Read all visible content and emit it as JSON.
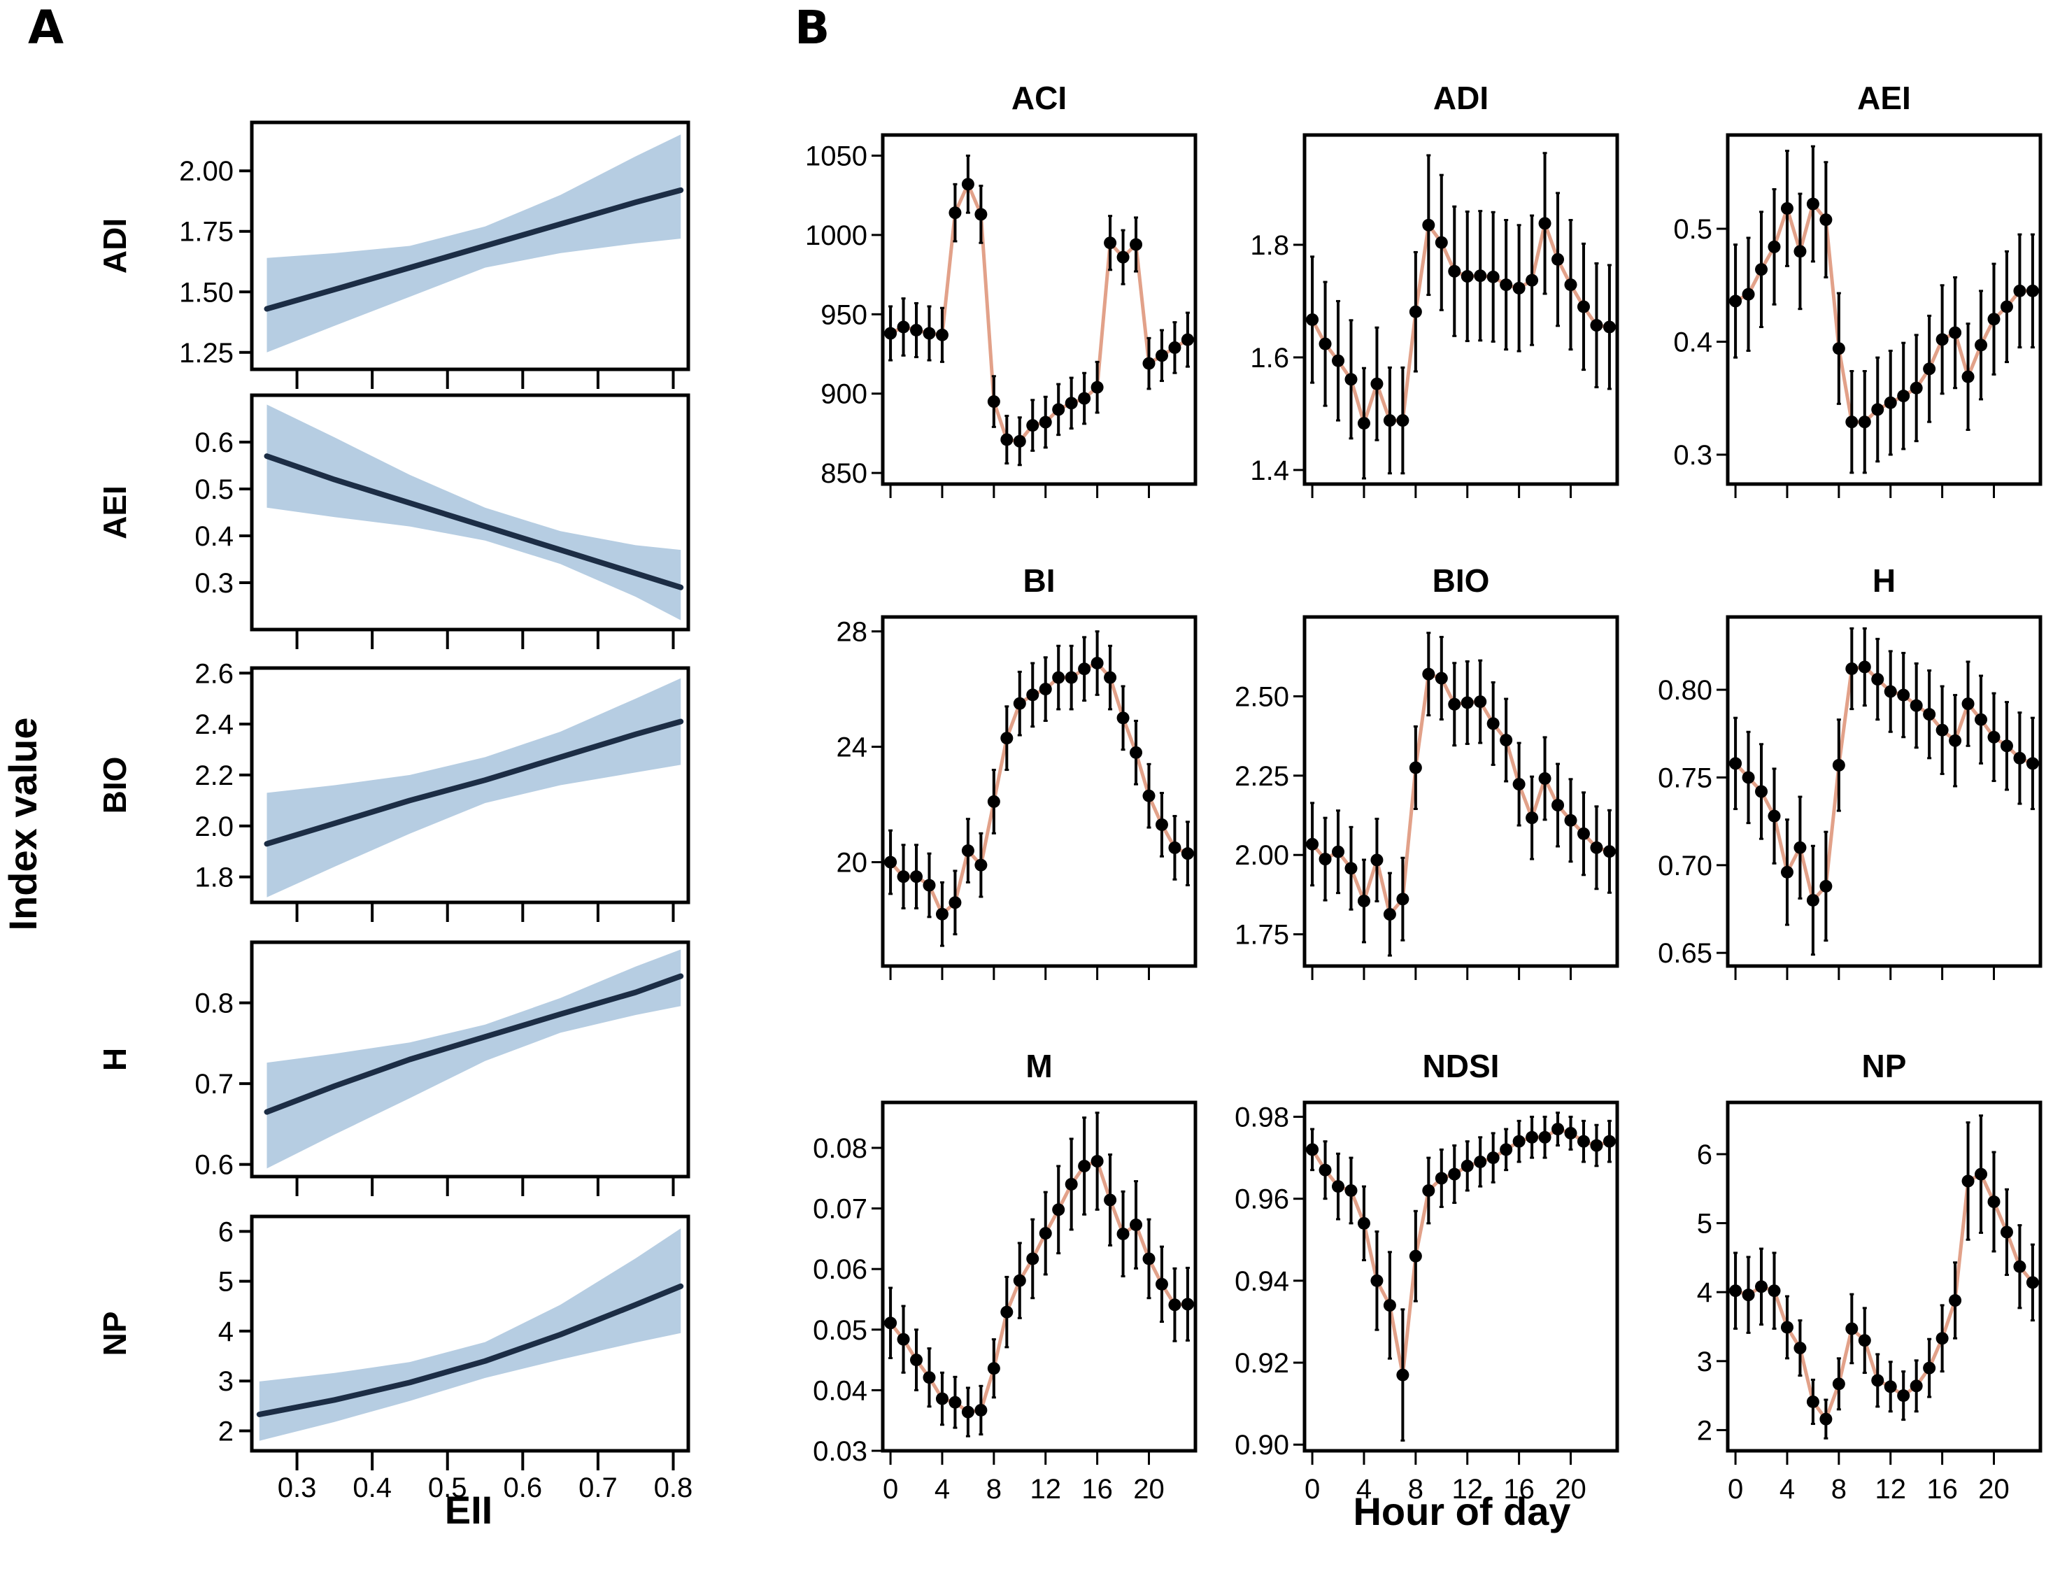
{
  "figure": {
    "panel_a_letter": "A",
    "panel_b_letter": "B",
    "panel_a_ylabel": "Index value",
    "panel_a_xlabel": "EII",
    "panel_b_xlabel": "Hour of day",
    "colors": {
      "ci_band": "#b6cde2",
      "fit_line": "#1c2d45",
      "hourly_line": "#e2a189",
      "points": "#000000",
      "frame": "#000000"
    }
  },
  "chart_data": [
    {
      "panel": "A",
      "type": "line",
      "title": "Index value vs EII",
      "xlabel": "EII",
      "ylabel": "Index value",
      "xlim": [
        0.24,
        0.82
      ],
      "xticks": [
        0.3,
        0.4,
        0.5,
        0.6,
        0.7,
        0.8
      ],
      "xtick_labels": [
        "0.3",
        "0.4",
        "0.5",
        "0.6",
        "0.7",
        "0.8"
      ],
      "grid": false,
      "subplots": [
        {
          "name": "ADI",
          "ylim": [
            1.18,
            2.2
          ],
          "yticks": [
            1.25,
            1.5,
            1.75,
            2.0
          ],
          "ytick_labels": [
            "1.25",
            "1.50",
            "1.75",
            "2.00"
          ],
          "x": [
            0.26,
            0.35,
            0.45,
            0.55,
            0.65,
            0.75,
            0.81
          ],
          "fit": [
            1.43,
            1.51,
            1.6,
            1.69,
            1.78,
            1.87,
            1.92
          ],
          "lower": [
            1.25,
            1.36,
            1.48,
            1.6,
            1.66,
            1.7,
            1.72
          ],
          "upper": [
            1.64,
            1.66,
            1.69,
            1.77,
            1.9,
            2.06,
            2.15
          ]
        },
        {
          "name": "AEI",
          "ylim": [
            0.2,
            0.7
          ],
          "yticks": [
            0.3,
            0.4,
            0.5,
            0.6
          ],
          "ytick_labels": [
            "0.3",
            "0.4",
            "0.5",
            "0.6"
          ],
          "x": [
            0.26,
            0.35,
            0.45,
            0.55,
            0.65,
            0.75,
            0.81
          ],
          "fit": [
            0.57,
            0.52,
            0.47,
            0.42,
            0.37,
            0.32,
            0.29
          ],
          "lower": [
            0.46,
            0.44,
            0.42,
            0.39,
            0.34,
            0.27,
            0.22
          ],
          "upper": [
            0.68,
            0.61,
            0.53,
            0.46,
            0.41,
            0.38,
            0.37
          ]
        },
        {
          "name": "BIO",
          "ylim": [
            1.7,
            2.62
          ],
          "yticks": [
            1.8,
            2.0,
            2.2,
            2.4,
            2.6
          ],
          "ytick_labels": [
            "1.8",
            "2.0",
            "2.2",
            "2.4",
            "2.6"
          ],
          "x": [
            0.26,
            0.35,
            0.45,
            0.55,
            0.65,
            0.75,
            0.81
          ],
          "fit": [
            1.93,
            2.01,
            2.1,
            2.18,
            2.27,
            2.36,
            2.41
          ],
          "lower": [
            1.72,
            1.84,
            1.97,
            2.09,
            2.16,
            2.21,
            2.24
          ],
          "upper": [
            2.13,
            2.16,
            2.2,
            2.27,
            2.37,
            2.5,
            2.58
          ]
        },
        {
          "name": "H",
          "ylim": [
            0.585,
            0.875
          ],
          "yticks": [
            0.6,
            0.7,
            0.8
          ],
          "ytick_labels": [
            "0.6",
            "0.7",
            "0.8"
          ],
          "x": [
            0.26,
            0.35,
            0.45,
            0.55,
            0.65,
            0.75,
            0.81
          ],
          "fit": [
            0.665,
            0.697,
            0.73,
            0.758,
            0.786,
            0.813,
            0.833
          ],
          "lower": [
            0.595,
            0.637,
            0.682,
            0.728,
            0.763,
            0.785,
            0.796
          ],
          "upper": [
            0.726,
            0.737,
            0.751,
            0.773,
            0.806,
            0.845,
            0.866
          ]
        },
        {
          "name": "NP",
          "ylim": [
            1.6,
            6.3
          ],
          "yticks": [
            2,
            3,
            4,
            5,
            6
          ],
          "ytick_labels": [
            "2",
            "3",
            "4",
            "5",
            "6"
          ],
          "x": [
            0.25,
            0.35,
            0.45,
            0.55,
            0.65,
            0.75,
            0.81
          ],
          "fit": [
            2.33,
            2.62,
            2.97,
            3.4,
            3.93,
            4.53,
            4.9
          ],
          "lower": [
            1.8,
            2.18,
            2.6,
            3.06,
            3.43,
            3.77,
            3.96
          ],
          "upper": [
            2.99,
            3.16,
            3.38,
            3.78,
            4.53,
            5.46,
            6.06
          ]
        }
      ]
    },
    {
      "panel": "B",
      "type": "line",
      "title": "Index value by hour of day",
      "xlabel": "Hour of day",
      "x": [
        0,
        1,
        2,
        3,
        4,
        5,
        6,
        7,
        8,
        9,
        10,
        11,
        12,
        13,
        14,
        15,
        16,
        17,
        18,
        19,
        20,
        21,
        22,
        23
      ],
      "xlim": [
        -0.6,
        23.6
      ],
      "xticks": [
        0,
        4,
        8,
        12,
        16,
        20
      ],
      "xtick_labels": [
        "0",
        "4",
        "8",
        "12",
        "16",
        "20"
      ],
      "grid": false,
      "subplots": [
        {
          "name": "ACI",
          "ylim": [
            843,
            1063
          ],
          "yticks": [
            850,
            900,
            950,
            1000,
            1050
          ],
          "ytick_labels": [
            "850",
            "900",
            "950",
            "1000",
            "1050"
          ],
          "values": [
            938,
            942,
            940,
            938,
            937,
            1014,
            1032,
            1013,
            895,
            871,
            870,
            880,
            882,
            890,
            894,
            897,
            904,
            995,
            986,
            994,
            919,
            924,
            929,
            934
          ],
          "err": [
            17,
            18,
            17,
            17,
            17,
            18,
            18,
            18,
            16,
            15,
            15,
            16,
            16,
            16,
            16,
            16,
            16,
            17,
            17,
            17,
            16,
            16,
            16,
            17
          ]
        },
        {
          "name": "ADI",
          "ylim": [
            1.375,
            1.995
          ],
          "yticks": [
            1.4,
            1.6,
            1.8
          ],
          "ytick_labels": [
            "1.4",
            "1.6",
            "1.8"
          ],
          "values": [
            1.667,
            1.624,
            1.594,
            1.561,
            1.483,
            1.553,
            1.488,
            1.488,
            1.681,
            1.835,
            1.804,
            1.753,
            1.744,
            1.745,
            1.743,
            1.729,
            1.723,
            1.737,
            1.838,
            1.774,
            1.729,
            1.69,
            1.657,
            1.654
          ],
          "err": [
            0.112,
            0.11,
            0.106,
            0.105,
            0.098,
            0.1,
            0.094,
            0.094,
            0.106,
            0.124,
            0.12,
            0.115,
            0.115,
            0.115,
            0.115,
            0.115,
            0.112,
            0.115,
            0.125,
            0.118,
            0.115,
            0.112,
            0.11,
            0.11
          ]
        },
        {
          "name": "AEI",
          "ylim": [
            0.274,
            0.583
          ],
          "yticks": [
            0.3,
            0.4,
            0.5
          ],
          "ytick_labels": [
            "0.3",
            "0.4",
            "0.5"
          ],
          "values": [
            0.436,
            0.442,
            0.464,
            0.484,
            0.518,
            0.48,
            0.522,
            0.508,
            0.394,
            0.329,
            0.329,
            0.34,
            0.346,
            0.352,
            0.359,
            0.376,
            0.402,
            0.408,
            0.369,
            0.397,
            0.42,
            0.431,
            0.445,
            0.445
          ],
          "err": [
            0.05,
            0.05,
            0.051,
            0.051,
            0.051,
            0.051,
            0.051,
            0.051,
            0.049,
            0.045,
            0.045,
            0.046,
            0.046,
            0.047,
            0.047,
            0.047,
            0.048,
            0.049,
            0.047,
            0.048,
            0.049,
            0.049,
            0.05,
            0.05
          ]
        },
        {
          "name": "BI",
          "ylim": [
            16.4,
            28.5
          ],
          "yticks": [
            20,
            24,
            28
          ],
          "ytick_labels": [
            "20",
            "24",
            "28"
          ],
          "values": [
            20.0,
            19.5,
            19.5,
            19.2,
            18.2,
            18.6,
            20.4,
            19.9,
            22.1,
            24.3,
            25.5,
            25.8,
            26.0,
            26.4,
            26.4,
            26.7,
            26.9,
            26.4,
            25.0,
            23.8,
            22.3,
            21.3,
            20.5,
            20.3
          ],
          "err": [
            1.1,
            1.1,
            1.1,
            1.1,
            1.1,
            1.1,
            1.1,
            1.1,
            1.1,
            1.1,
            1.1,
            1.1,
            1.1,
            1.1,
            1.1,
            1.1,
            1.1,
            1.1,
            1.1,
            1.1,
            1.1,
            1.1,
            1.1,
            1.1
          ]
        },
        {
          "name": "BIO",
          "ylim": [
            1.65,
            2.75
          ],
          "yticks": [
            1.75,
            2.0,
            2.25,
            2.5
          ],
          "ytick_labels": [
            "1.75",
            "2.00",
            "2.25",
            "2.50"
          ],
          "values": [
            2.034,
            1.987,
            2.01,
            1.958,
            1.855,
            1.984,
            1.813,
            1.861,
            2.275,
            2.57,
            2.557,
            2.475,
            2.48,
            2.483,
            2.414,
            2.362,
            2.223,
            2.117,
            2.241,
            2.157,
            2.109,
            2.067,
            2.023,
            2.011
          ],
          "err": [
            0.13,
            0.13,
            0.13,
            0.13,
            0.13,
            0.13,
            0.13,
            0.13,
            0.13,
            0.13,
            0.13,
            0.13,
            0.13,
            0.13,
            0.13,
            0.13,
            0.13,
            0.13,
            0.13,
            0.13,
            0.13,
            0.13,
            0.13,
            0.13
          ]
        },
        {
          "name": "H",
          "ylim": [
            0.6425,
            0.8415
          ],
          "yticks": [
            0.65,
            0.7,
            0.75,
            0.8
          ],
          "ytick_labels": [
            "0.65",
            "0.70",
            "0.75",
            "0.80"
          ],
          "values": [
            0.758,
            0.75,
            0.742,
            0.728,
            0.696,
            0.71,
            0.68,
            0.688,
            0.757,
            0.812,
            0.813,
            0.806,
            0.799,
            0.797,
            0.791,
            0.786,
            0.777,
            0.771,
            0.792,
            0.783,
            0.773,
            0.768,
            0.761,
            0.758
          ],
          "err": [
            0.026,
            0.026,
            0.027,
            0.027,
            0.03,
            0.029,
            0.031,
            0.031,
            0.026,
            0.023,
            0.022,
            0.023,
            0.023,
            0.024,
            0.024,
            0.025,
            0.025,
            0.026,
            0.024,
            0.025,
            0.025,
            0.025,
            0.026,
            0.026
          ]
        },
        {
          "name": "M",
          "ylim": [
            0.03,
            0.0875
          ],
          "yticks": [
            0.03,
            0.04,
            0.05,
            0.06,
            0.07,
            0.08
          ],
          "ytick_labels": [
            "0.03",
            "0.04",
            "0.05",
            "0.06",
            "0.07",
            "0.08"
          ],
          "values": [
            0.0511,
            0.0484,
            0.045,
            0.0421,
            0.0386,
            0.038,
            0.0364,
            0.0367,
            0.0436,
            0.0529,
            0.0581,
            0.0617,
            0.0659,
            0.0698,
            0.074,
            0.077,
            0.0778,
            0.0714,
            0.0658,
            0.0673,
            0.0617,
            0.0575,
            0.0541,
            0.0542
          ],
          "err": [
            0.0058,
            0.0055,
            0.005,
            0.0048,
            0.0043,
            0.0042,
            0.004,
            0.004,
            0.0048,
            0.0058,
            0.0062,
            0.0065,
            0.0068,
            0.0072,
            0.0075,
            0.008,
            0.008,
            0.0075,
            0.007,
            0.0072,
            0.0065,
            0.0062,
            0.006,
            0.006
          ]
        },
        {
          "name": "NDSI",
          "ylim": [
            0.8985,
            0.9835
          ],
          "yticks": [
            0.9,
            0.92,
            0.94,
            0.96,
            0.98
          ],
          "ytick_labels": [
            "0.90",
            "0.92",
            "0.94",
            "0.96",
            "0.98"
          ],
          "values": [
            0.972,
            0.967,
            0.963,
            0.962,
            0.954,
            0.94,
            0.934,
            0.917,
            0.946,
            0.962,
            0.965,
            0.966,
            0.968,
            0.969,
            0.97,
            0.972,
            0.974,
            0.975,
            0.975,
            0.977,
            0.976,
            0.974,
            0.973,
            0.974
          ],
          "err": [
            0.005,
            0.007,
            0.008,
            0.008,
            0.009,
            0.012,
            0.013,
            0.016,
            0.011,
            0.008,
            0.007,
            0.007,
            0.006,
            0.006,
            0.006,
            0.005,
            0.005,
            0.005,
            0.005,
            0.004,
            0.004,
            0.005,
            0.005,
            0.005
          ]
        },
        {
          "name": "NP",
          "ylim": [
            1.7,
            6.75
          ],
          "yticks": [
            2,
            3,
            4,
            5,
            6
          ],
          "ytick_labels": [
            "2",
            "3",
            "4",
            "5",
            "6"
          ],
          "values": [
            4.02,
            3.96,
            4.08,
            4.02,
            3.49,
            3.19,
            2.41,
            2.16,
            2.67,
            3.47,
            3.3,
            2.72,
            2.63,
            2.5,
            2.64,
            2.9,
            3.33,
            3.88,
            5.61,
            5.71,
            5.31,
            4.87,
            4.37,
            4.14
          ],
          "err": [
            0.55,
            0.55,
            0.55,
            0.55,
            0.45,
            0.4,
            0.32,
            0.28,
            0.37,
            0.5,
            0.47,
            0.38,
            0.36,
            0.35,
            0.37,
            0.42,
            0.48,
            0.55,
            0.85,
            0.85,
            0.72,
            0.62,
            0.6,
            0.55
          ]
        }
      ]
    }
  ]
}
